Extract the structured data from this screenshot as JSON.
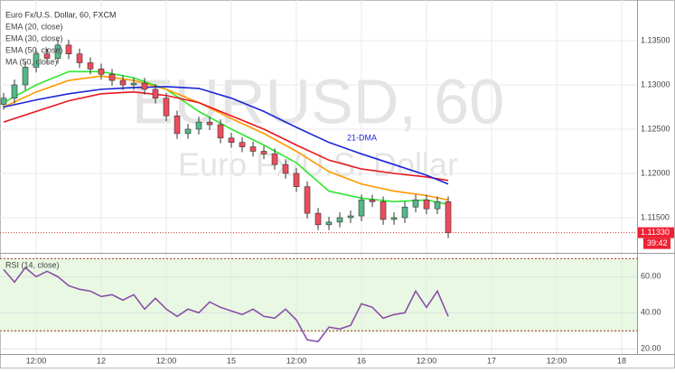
{
  "chart_data": {
    "type": "candlestick",
    "title": "Euro Fx/U.S. Dollar, 60, FXCM",
    "watermark": "EURUSD, 60",
    "watermark_subtitle": "Euro Fx/U.S. Dollar",
    "annotation": "21-DMA",
    "xlim": [
      -18.67,
      98.83
    ],
    "xticks": [
      {
        "value": -12,
        "label": "12:00"
      },
      {
        "value": 0,
        "label": "12"
      },
      {
        "value": 12,
        "label": "12:00"
      },
      {
        "value": 24,
        "label": "15"
      },
      {
        "value": 36,
        "label": "12:00"
      },
      {
        "value": 48,
        "label": "16"
      },
      {
        "value": 60,
        "label": "12:00"
      },
      {
        "value": 72,
        "label": "17"
      },
      {
        "value": 84,
        "label": "12:00"
      },
      {
        "value": 96,
        "label": "18"
      }
    ],
    "ylim": [
      1.11102,
      1.13959
    ],
    "yticks": [
      {
        "value": 1.115,
        "label": "1.11500"
      },
      {
        "value": 1.12,
        "label": "1.12000"
      },
      {
        "value": 1.125,
        "label": "1.12500"
      },
      {
        "value": 1.13,
        "label": "1.13000"
      },
      {
        "value": 1.135,
        "label": "1.13500"
      }
    ],
    "grid": true,
    "up_color": "#53b987",
    "down_color": "#eb4d5c",
    "candles": {
      "x": [
        -18,
        -16,
        -14,
        -12,
        -10,
        -8,
        -6,
        -4,
        -2,
        0,
        2,
        4,
        6,
        8,
        10,
        12,
        14,
        16,
        18,
        20,
        22,
        24,
        26,
        28,
        30,
        32,
        34,
        36,
        38,
        40,
        42,
        44,
        46,
        48,
        50,
        52,
        54,
        56,
        58,
        60,
        62,
        64
      ],
      "open": [
        1.1278,
        1.1285,
        1.13,
        1.132,
        1.1335,
        1.133,
        1.1345,
        1.1335,
        1.1325,
        1.1318,
        1.1312,
        1.1305,
        1.13,
        1.1302,
        1.1295,
        1.1285,
        1.1265,
        1.1245,
        1.125,
        1.1258,
        1.1255,
        1.124,
        1.1235,
        1.123,
        1.1225,
        1.1222,
        1.121,
        1.12,
        1.1185,
        1.1155,
        1.1142,
        1.1145,
        1.115,
        1.1152,
        1.117,
        1.1168,
        1.1148,
        1.115,
        1.1162,
        1.117,
        1.116,
        1.1168
      ],
      "high": [
        1.1291,
        1.1306,
        1.1326,
        1.1341,
        1.1341,
        1.1351,
        1.1351,
        1.1341,
        1.1331,
        1.1324,
        1.1318,
        1.1311,
        1.1308,
        1.1308,
        1.1301,
        1.1291,
        1.1271,
        1.1256,
        1.1264,
        1.1264,
        1.1261,
        1.1246,
        1.1241,
        1.1236,
        1.1231,
        1.1228,
        1.1216,
        1.1206,
        1.1191,
        1.1161,
        1.1151,
        1.1156,
        1.1158,
        1.1176,
        1.1176,
        1.1174,
        1.1156,
        1.1168,
        1.1176,
        1.1176,
        1.1174,
        1.1174
      ],
      "low": [
        1.1272,
        1.1279,
        1.1294,
        1.1314,
        1.1324,
        1.1324,
        1.1329,
        1.1319,
        1.1312,
        1.1306,
        1.1299,
        1.1294,
        1.1294,
        1.1289,
        1.1279,
        1.1259,
        1.1239,
        1.1239,
        1.1244,
        1.1249,
        1.1234,
        1.1229,
        1.1224,
        1.1219,
        1.1216,
        1.1204,
        1.1194,
        1.1179,
        1.1149,
        1.1136,
        1.1136,
        1.1139,
        1.1144,
        1.1146,
        1.1162,
        1.1142,
        1.1142,
        1.1144,
        1.1156,
        1.1154,
        1.1154,
        1.1127
      ],
      "close": [
        1.1285,
        1.13,
        1.132,
        1.1335,
        1.133,
        1.1345,
        1.1335,
        1.1325,
        1.1318,
        1.1312,
        1.1305,
        1.13,
        1.1302,
        1.1295,
        1.1285,
        1.1265,
        1.1245,
        1.125,
        1.1258,
        1.1255,
        1.124,
        1.1235,
        1.123,
        1.1225,
        1.1222,
        1.121,
        1.12,
        1.1185,
        1.1155,
        1.1142,
        1.1145,
        1.115,
        1.1152,
        1.117,
        1.1168,
        1.1148,
        1.115,
        1.1162,
        1.117,
        1.116,
        1.1168,
        1.1133
      ]
    },
    "ma_x": [
      -18,
      -12,
      -6,
      0,
      6,
      12,
      18,
      24,
      30,
      36,
      42,
      48,
      54,
      60,
      64
    ],
    "series": [
      {
        "name": "EMA (20, close)",
        "color": "#2ee82e",
        "values": [
          1.128,
          1.13,
          1.1315,
          1.1315,
          1.1308,
          1.1295,
          1.127,
          1.125,
          1.1232,
          1.1212,
          1.118,
          1.1172,
          1.1168,
          1.117,
          1.1165
        ]
      },
      {
        "name": "EMA (30, close)",
        "color": "#ff9900",
        "values": [
          1.1275,
          1.1292,
          1.1305,
          1.131,
          1.1305,
          1.1295,
          1.128,
          1.1262,
          1.1245,
          1.1225,
          1.1202,
          1.1188,
          1.118,
          1.1175,
          1.117
        ]
      },
      {
        "name": "EMA (50, close)",
        "color": "#e8161e",
        "values": [
          1.1258,
          1.127,
          1.1282,
          1.129,
          1.1292,
          1.1288,
          1.128,
          1.1265,
          1.125,
          1.1232,
          1.1215,
          1.1205,
          1.12,
          1.1196,
          1.1192
        ]
      },
      {
        "name": "MA (50, close)",
        "color": "#1d24d6",
        "values": [
          1.1275,
          1.1283,
          1.129,
          1.1295,
          1.1297,
          1.1298,
          1.1296,
          1.1285,
          1.127,
          1.1252,
          1.1235,
          1.1222,
          1.121,
          1.1198,
          1.1188
        ]
      }
    ],
    "last_price": {
      "value": 1.1133,
      "label": "1.11330"
    },
    "countdown": "39:42",
    "rsi": {
      "name": "RSI (14, close)",
      "color": "#8a4fa8",
      "values": [
        64,
        57,
        65,
        60,
        63,
        60,
        55,
        53,
        52,
        49,
        50,
        47,
        50,
        42,
        48,
        42,
        38,
        42,
        40,
        46,
        43,
        41,
        39,
        42,
        38,
        37,
        42,
        36,
        25,
        24,
        32,
        31,
        33,
        45,
        43,
        37,
        39,
        40,
        52,
        43,
        52,
        38
      ],
      "ylim": [
        15.6,
        70.7
      ],
      "yticks": [
        {
          "value": 20,
          "label": "20.00"
        },
        {
          "value": 40,
          "label": "40.00"
        },
        {
          "value": 60,
          "label": "60.00"
        }
      ],
      "bands": [
        30,
        70
      ]
    }
  }
}
